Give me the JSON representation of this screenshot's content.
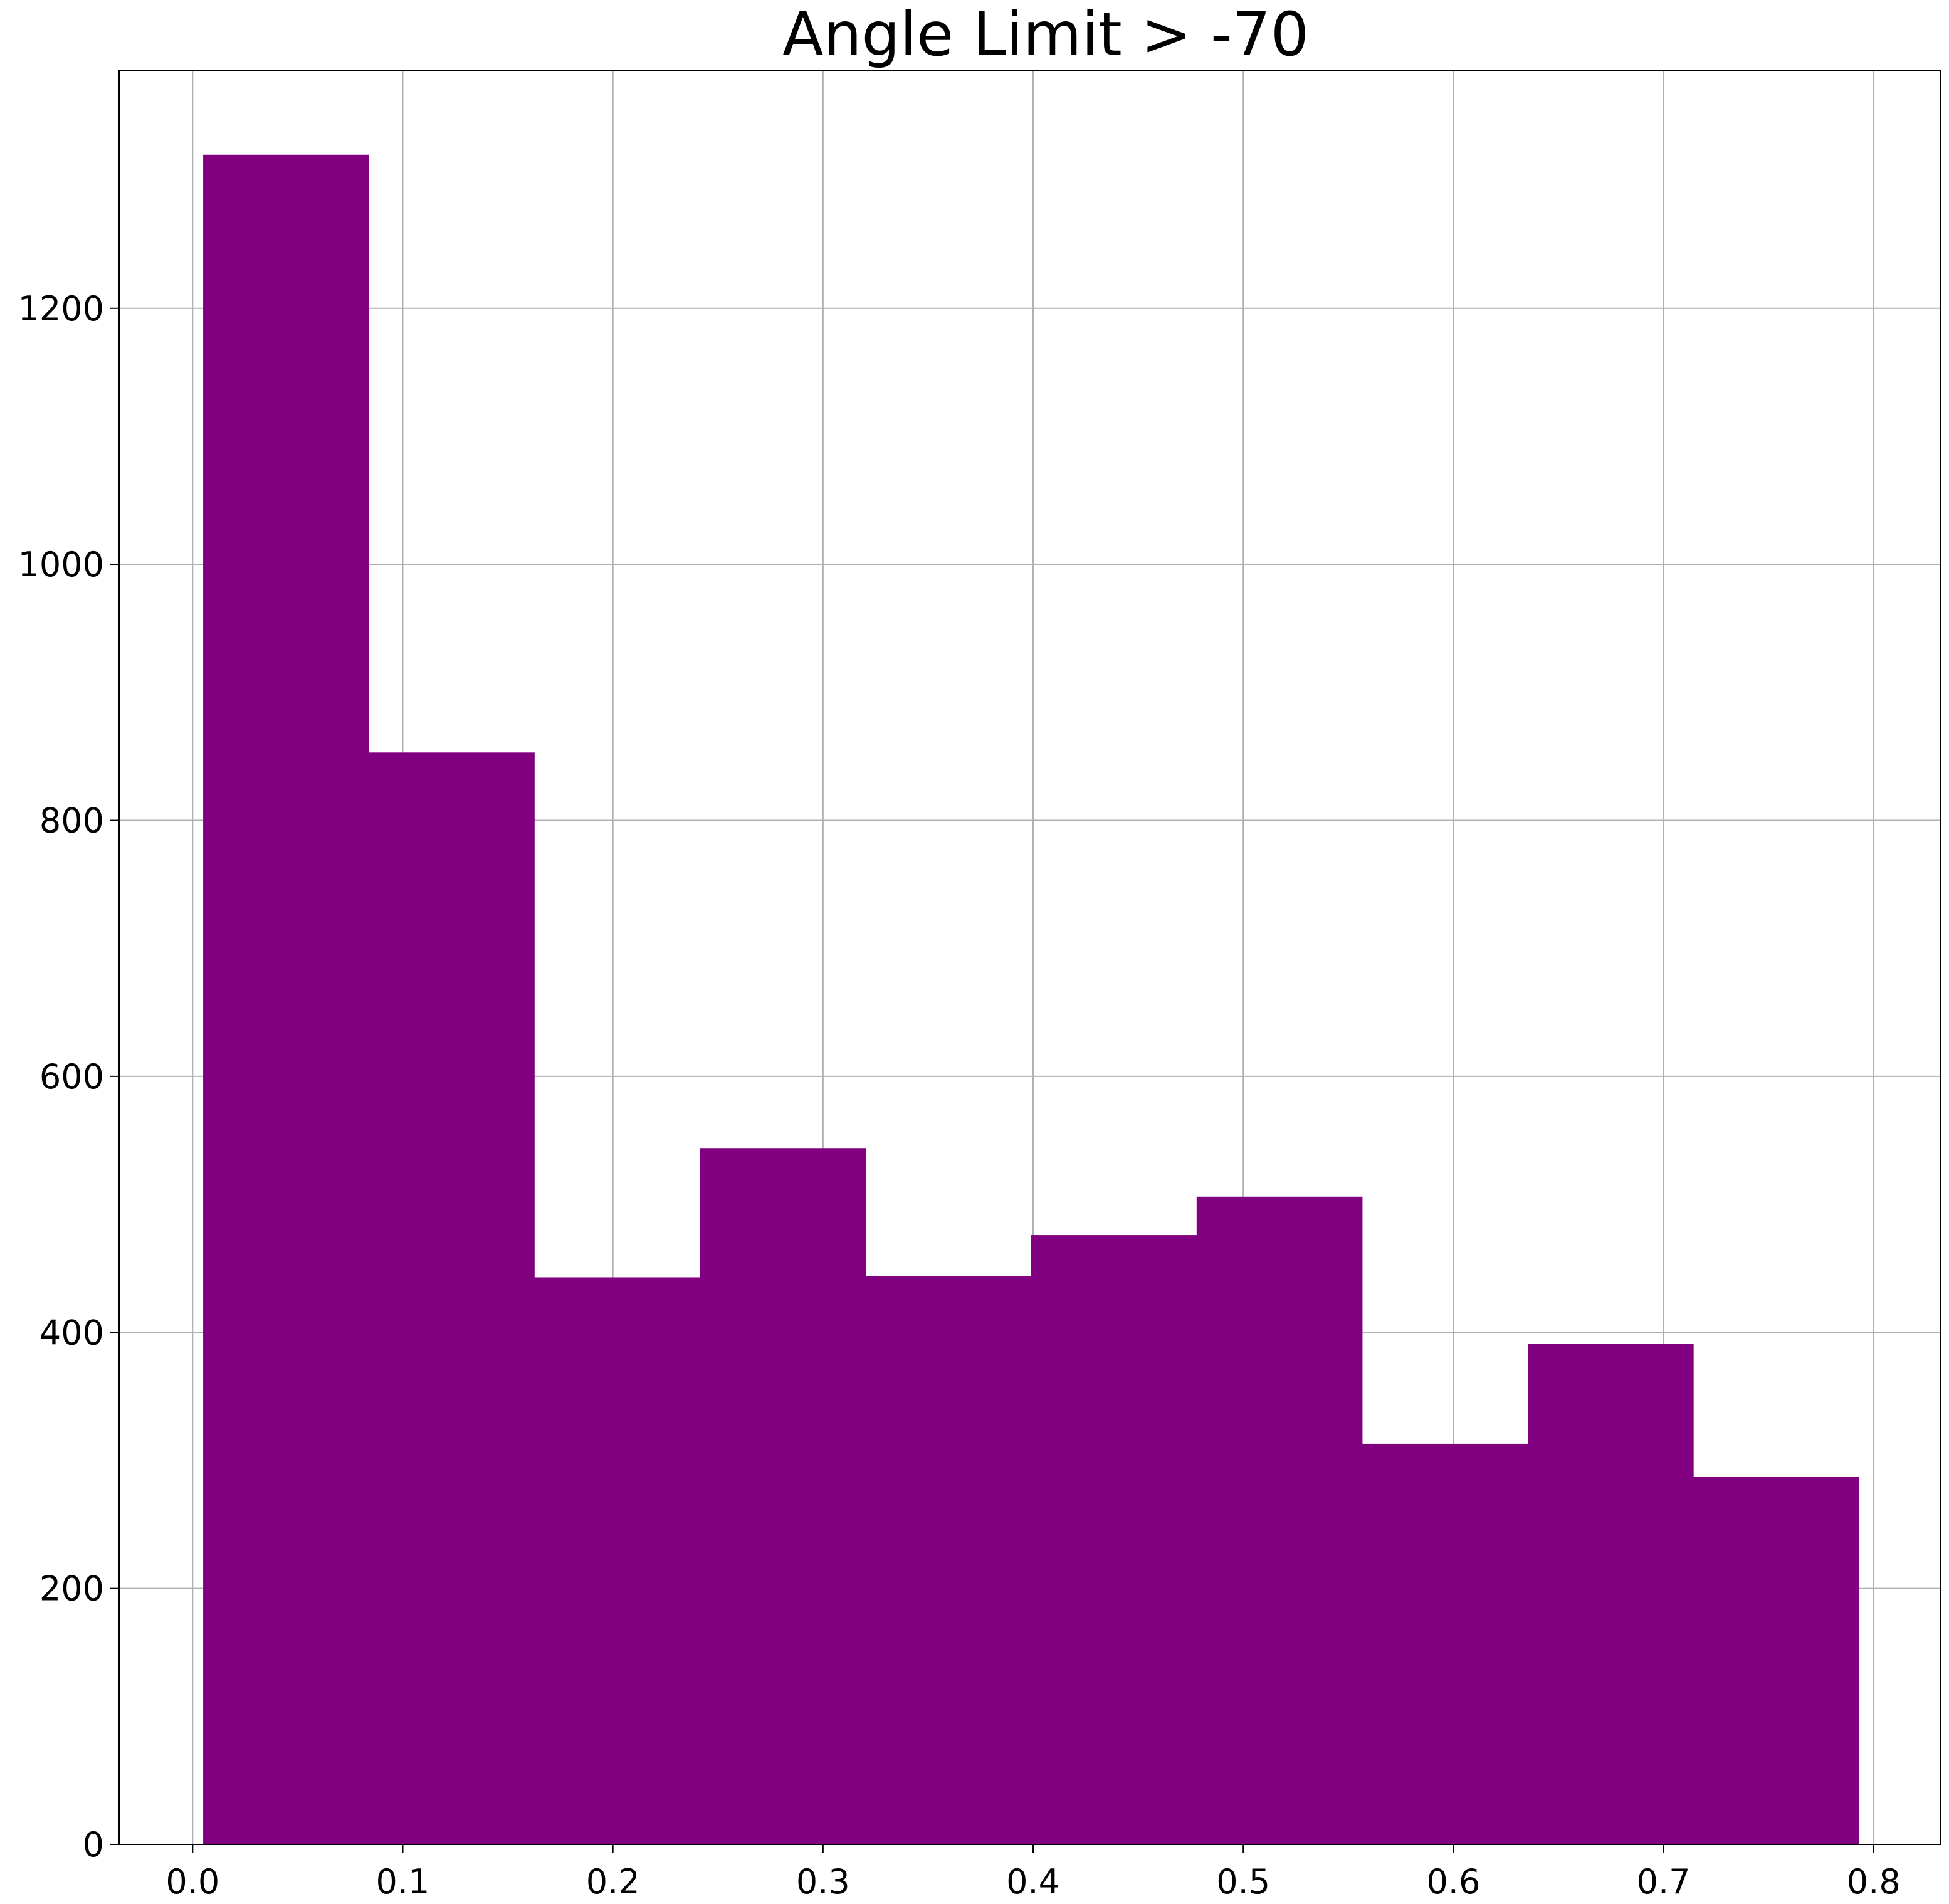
{
  "chart_data": {
    "type": "bar",
    "title": "Angle Limit > -70",
    "xlabel": "",
    "ylabel": "",
    "bin_edges": [
      0.005,
      0.0838,
      0.1626,
      0.2414,
      0.3202,
      0.399,
      0.4778,
      0.5566,
      0.6354,
      0.7142,
      0.793
    ],
    "values": [
      1320,
      853,
      443,
      544,
      444,
      476,
      506,
      313,
      391,
      287
    ],
    "xlim": [
      -0.035,
      0.832
    ],
    "ylim": [
      0,
      1386
    ],
    "x_ticks": [
      0.0,
      0.1,
      0.2,
      0.3,
      0.4,
      0.5,
      0.6,
      0.7,
      0.8
    ],
    "x_tick_labels": [
      "0.0",
      "0.1",
      "0.2",
      "0.3",
      "0.4",
      "0.5",
      "0.6",
      "0.7",
      "0.8"
    ],
    "y_ticks": [
      0,
      200,
      400,
      600,
      800,
      1000,
      1200
    ],
    "y_tick_labels": [
      "0",
      "200",
      "400",
      "600",
      "800",
      "1000",
      "1200"
    ],
    "bar_color": "#800080",
    "grid": true,
    "legend": "none"
  }
}
